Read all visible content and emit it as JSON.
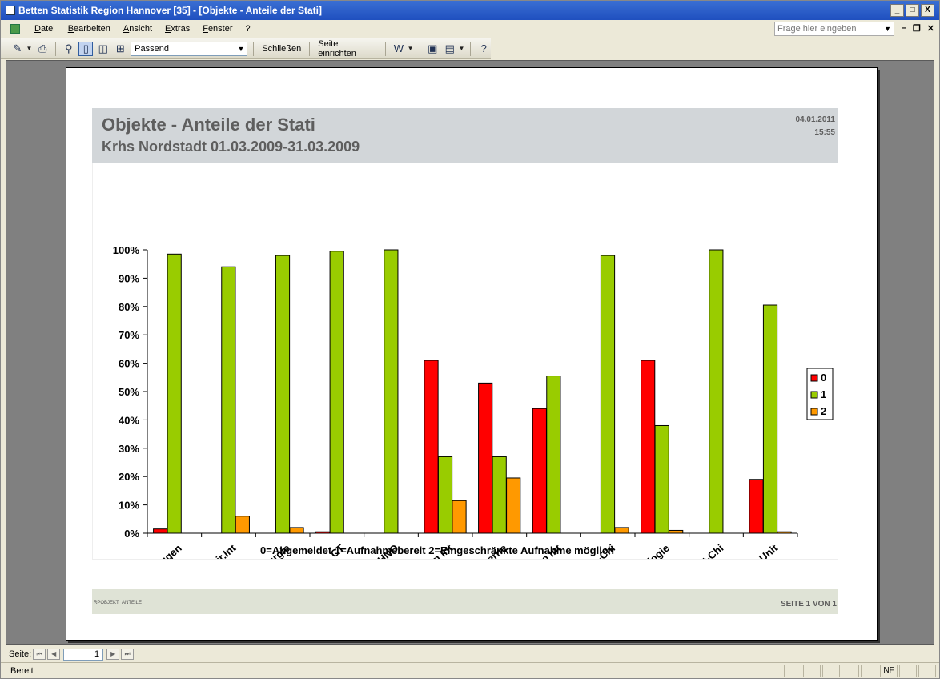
{
  "window": {
    "title": "Betten Statistik Region Hannover [35] - [Objekte - Anteile der Stati]",
    "controls": [
      "_",
      "□",
      "X"
    ]
  },
  "menu": {
    "items": [
      "Datei",
      "Bearbeiten",
      "Ansicht",
      "Extras",
      "Fenster",
      "?"
    ],
    "ask_placeholder": "Frage hier eingeben"
  },
  "toolbar": {
    "zoom_value": "Passend",
    "close_label": "Schließen",
    "page_setup_label": "Seite einrichten"
  },
  "report": {
    "title": "Objekte - Anteile der Stati",
    "subtitle": "Krhs Nordstadt 01.03.2009-31.03.2009",
    "date": "04.01.2011",
    "time": "15:55",
    "footer_code": "RPOBJEKT_ANTEILE",
    "page_info": "SEITE 1 VON 1"
  },
  "chart_data": {
    "type": "bar",
    "categories": [
      "Augen",
      "Chir.Int",
      "Chirurgie",
      "CT",
      "HNO",
      "Intern Int",
      "Interne",
      "Neuro Int",
      "Neuro.-Chi",
      "Neurologie",
      "Plast-Chi",
      "Stro.Unit"
    ],
    "series": [
      {
        "name": "0",
        "color": "#ff0000",
        "values": [
          1.5,
          0,
          0,
          0.5,
          0,
          61,
          53,
          44,
          0,
          61,
          0,
          19
        ]
      },
      {
        "name": "1",
        "color": "#99cc00",
        "values": [
          98.5,
          94,
          98,
          99.5,
          100,
          27,
          27,
          55.5,
          98,
          38,
          100,
          80.5
        ]
      },
      {
        "name": "2",
        "color": "#ff9900",
        "values": [
          0,
          6,
          2,
          0,
          0,
          11.5,
          19.5,
          0,
          2,
          1,
          0,
          0.5
        ]
      }
    ],
    "yticks": [
      "0%",
      "10%",
      "20%",
      "30%",
      "40%",
      "50%",
      "60%",
      "70%",
      "80%",
      "90%",
      "100%"
    ],
    "ylim": [
      0,
      100
    ],
    "legend_position": "right",
    "caption": "0=Abgemeldet   1=Aufnahmebereit   2=Eingeschränkte Aufnahme möglich"
  },
  "nav": {
    "label": "Seite:",
    "page": "1"
  },
  "status": {
    "text": "Bereit",
    "indicator": "NF"
  }
}
